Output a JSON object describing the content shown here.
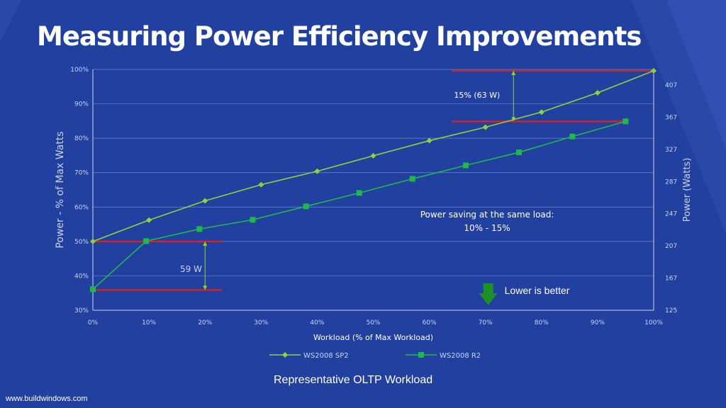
{
  "slide": {
    "title": "Measuring Power Efficiency Improvements",
    "caption": "Representative OLTP Workload",
    "footer_url": "www.buildwindows.com"
  },
  "colors": {
    "background": "#22409f",
    "sp2_series": "#8fd33a",
    "r2_series": "#1fb84a",
    "reference_line": "#e02020",
    "arrow": "#1f8f2a",
    "grid": "#6d86c9"
  },
  "chart_data": {
    "type": "line",
    "xlabel": "Workload (% of Max Workload)",
    "ylabel": "Power - % of Max Watts",
    "y2label": "Power (Watts)",
    "x_ticks": [
      "0%",
      "10%",
      "20%",
      "30%",
      "40%",
      "50%",
      "60%",
      "70%",
      "80%",
      "90%",
      "100%"
    ],
    "y_ticks": [
      "30%",
      "40%",
      "50%",
      "60%",
      "70%",
      "80%",
      "90%",
      "100%"
    ],
    "y2_ticks": [
      "125",
      "167",
      "207",
      "247",
      "287",
      "327",
      "367",
      "407"
    ],
    "xlim": [
      0,
      100
    ],
    "ylim": [
      30,
      100
    ],
    "grid": true,
    "legend_position": "bottom",
    "series": [
      {
        "name": "WS2008 SP2",
        "marker": "diamond",
        "x": [
          0,
          10,
          20,
          30,
          40,
          50,
          60,
          70,
          80,
          90,
          100
        ],
        "y": [
          50,
          56.2,
          61.8,
          66.5,
          70.4,
          74.9,
          79.3,
          83.2,
          87.6,
          93.2,
          99.6
        ]
      },
      {
        "name": "WS2008 R2",
        "marker": "square",
        "x": [
          0,
          9.5,
          19,
          28.5,
          38,
          47.5,
          57,
          66.5,
          76,
          85.5,
          95
        ],
        "y": [
          36.1,
          50.1,
          53.6,
          56.3,
          60.2,
          64.1,
          68.2,
          72.1,
          75.9,
          80.5,
          84.9
        ]
      }
    ],
    "annotations": {
      "top_gap_label": "15% (63 W)",
      "bottom_gap_label": "59 W",
      "saving_line1": "Power saving at the same load:",
      "saving_line2": "10% - 15%",
      "lower_better": "Lower is better"
    }
  }
}
